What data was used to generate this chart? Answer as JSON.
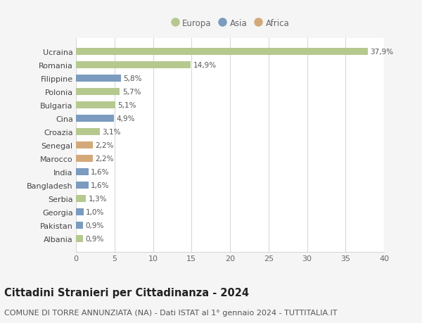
{
  "categories": [
    "Albania",
    "Pakistan",
    "Georgia",
    "Serbia",
    "Bangladesh",
    "India",
    "Marocco",
    "Senegal",
    "Croazia",
    "Cina",
    "Bulgaria",
    "Polonia",
    "Filippine",
    "Romania",
    "Ucraina"
  ],
  "values": [
    0.9,
    0.9,
    1.0,
    1.3,
    1.6,
    1.6,
    2.2,
    2.2,
    3.1,
    4.9,
    5.1,
    5.7,
    5.8,
    14.9,
    37.9
  ],
  "labels": [
    "0,9%",
    "0,9%",
    "1,0%",
    "1,3%",
    "1,6%",
    "1,6%",
    "2,2%",
    "2,2%",
    "3,1%",
    "4,9%",
    "5,1%",
    "5,7%",
    "5,8%",
    "14,9%",
    "37,9%"
  ],
  "continents": [
    "Europa",
    "Asia",
    "Asia",
    "Europa",
    "Asia",
    "Asia",
    "Africa",
    "Africa",
    "Europa",
    "Asia",
    "Europa",
    "Europa",
    "Asia",
    "Europa",
    "Europa"
  ],
  "colors": {
    "Europa": "#b5c98e",
    "Asia": "#7b9bbf",
    "Africa": "#d4a97a"
  },
  "legend_items": [
    "Europa",
    "Asia",
    "Africa"
  ],
  "title_bold": "Cittadini Stranieri per Cittadinanza - 2024",
  "subtitle": "COMUNE DI TORRE ANNUNZIATA (NA) - Dati ISTAT al 1° gennaio 2024 - TUTTITALIA.IT",
  "xlim": [
    0,
    40
  ],
  "xticks": [
    0,
    5,
    10,
    15,
    20,
    25,
    30,
    35,
    40
  ],
  "background_color": "#f5f5f5",
  "bar_background": "#ffffff",
  "grid_color": "#d8d8d8",
  "title_fontsize": 10.5,
  "subtitle_fontsize": 8,
  "label_fontsize": 7.5,
  "tick_fontsize": 8,
  "legend_fontsize": 8.5
}
